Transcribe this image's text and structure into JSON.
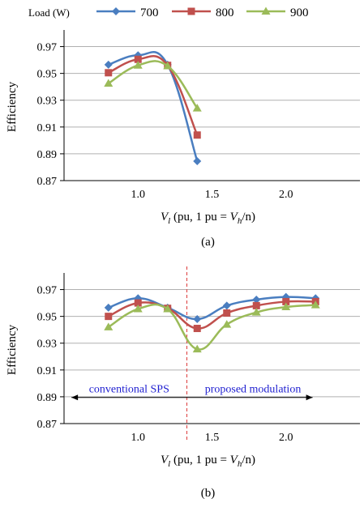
{
  "legend": {
    "title": "Load (W)",
    "position": "top"
  },
  "colors": {
    "s700": "#4a7ec0",
    "s800": "#c0504d",
    "s900": "#9bbb59",
    "divider": "#e05050",
    "annotation_text": "#1f1fd0"
  },
  "chart_data": [
    {
      "type": "line",
      "caption": "(a)",
      "xlabel": {
        "main": "V",
        "sub": "l",
        "rest": " (pu, 1 pu = ",
        "v2": "V",
        "sub2": "h",
        "tail": "/n)"
      },
      "ylabel": "Efficiency",
      "xlim": [
        0.5,
        2.5
      ],
      "ylim": [
        0.87,
        0.98
      ],
      "xticks": [
        1.0,
        1.5,
        2.0
      ],
      "xtick_labels": [
        "1.0",
        "1.5",
        "2.0"
      ],
      "yticks": [
        0.87,
        0.89,
        0.91,
        0.93,
        0.95,
        0.97
      ],
      "ytick_labels": [
        "0.87",
        "0.89",
        "0.91",
        "0.93",
        "0.95",
        "0.97"
      ],
      "grid": "horizontal",
      "series": [
        {
          "name": "700",
          "marker": "diamond",
          "x": [
            0.8,
            1.0,
            1.2,
            1.4
          ],
          "values": [
            0.9565,
            0.9635,
            0.9565,
            0.8845
          ]
        },
        {
          "name": "800",
          "marker": "square",
          "x": [
            0.8,
            1.0,
            1.2,
            1.4
          ],
          "values": [
            0.9505,
            0.9605,
            0.956,
            0.904
          ]
        },
        {
          "name": "900",
          "marker": "triangle",
          "x": [
            0.8,
            1.0,
            1.2,
            1.4
          ],
          "values": [
            0.9425,
            0.956,
            0.9555,
            0.924
          ]
        }
      ]
    },
    {
      "type": "line",
      "caption": "(b)",
      "xlabel": {
        "main": "V",
        "sub": "l",
        "rest": " (pu, 1 pu = ",
        "v2": "V",
        "sub2": "h",
        "tail": "/n)"
      },
      "ylabel": "Efficiency",
      "xlim": [
        0.5,
        2.5
      ],
      "ylim": [
        0.87,
        0.98
      ],
      "xticks": [
        1.0,
        1.5,
        2.0
      ],
      "xtick_labels": [
        "1.0",
        "1.5",
        "2.0"
      ],
      "yticks": [
        0.87,
        0.89,
        0.91,
        0.93,
        0.95,
        0.97
      ],
      "ytick_labels": [
        "0.87",
        "0.89",
        "0.91",
        "0.93",
        "0.95",
        "0.97"
      ],
      "grid": "horizontal",
      "divider_x": 1.33,
      "annotations": {
        "left_text": "conventional SPS",
        "right_text": "proposed modulation",
        "arrow_y": 0.8895,
        "arrow_left_x": 0.55,
        "arrow_right_x": 2.18
      },
      "series": [
        {
          "name": "700",
          "marker": "diamond",
          "x": [
            0.8,
            1.0,
            1.2,
            1.4,
            1.6,
            1.8,
            2.0,
            2.2
          ],
          "values": [
            0.9565,
            0.9635,
            0.9565,
            0.948,
            0.958,
            0.9625,
            0.9645,
            0.9635
          ]
        },
        {
          "name": "800",
          "marker": "square",
          "x": [
            0.8,
            1.0,
            1.2,
            1.4,
            1.6,
            1.8,
            2.0,
            2.2
          ],
          "values": [
            0.95,
            0.96,
            0.956,
            0.941,
            0.9525,
            0.958,
            0.961,
            0.961
          ]
        },
        {
          "name": "900",
          "marker": "triangle",
          "x": [
            0.8,
            1.0,
            1.2,
            1.4,
            1.6,
            1.8,
            2.0,
            2.2
          ],
          "values": [
            0.942,
            0.9555,
            0.9555,
            0.9255,
            0.944,
            0.953,
            0.957,
            0.9585
          ]
        }
      ]
    }
  ]
}
